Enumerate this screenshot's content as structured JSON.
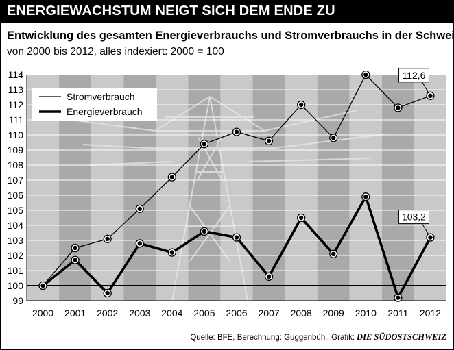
{
  "title": "ENERGIEWACHSTUM NEIGT SICH DEM ENDE ZU",
  "subtitle": "Entwicklung des gesamten Energieverbrauchs und Stromverbrauchs in der Schweiz",
  "subtitle2": "von 2000 bis 2012, alles indexiert: 2000 = 100",
  "source": "Quelle: BFE, Berechnung: Guggenbühl, Grafik:",
  "source_brand": "DIE SÜDOSTSCHWEIZ",
  "chart_data": {
    "type": "line",
    "x": [
      "2000",
      "2001",
      "2002",
      "2003",
      "2004",
      "2005",
      "2006",
      "2007",
      "2008",
      "2009",
      "2010",
      "2011",
      "2012"
    ],
    "ylim": [
      99,
      114
    ],
    "yticks": [
      "99",
      "100",
      "101",
      "102",
      "103",
      "104",
      "105",
      "106",
      "107",
      "108",
      "109",
      "110",
      "111",
      "112",
      "113",
      "114"
    ],
    "grid": true,
    "legend_position": "top-left",
    "series": [
      {
        "name": "Stromverbrauch",
        "values": [
          100,
          102.5,
          103.1,
          105.1,
          107.2,
          109.4,
          110.2,
          109.6,
          112.0,
          109.8,
          114.0,
          111.8,
          112.6
        ]
      },
      {
        "name": "Energieverbrauch",
        "values": [
          100,
          101.7,
          99.5,
          102.8,
          102.2,
          103.6,
          103.2,
          100.6,
          104.5,
          102.1,
          105.9,
          99.2,
          103.2
        ]
      }
    ],
    "annotations": [
      "112,6",
      "103,2"
    ]
  }
}
